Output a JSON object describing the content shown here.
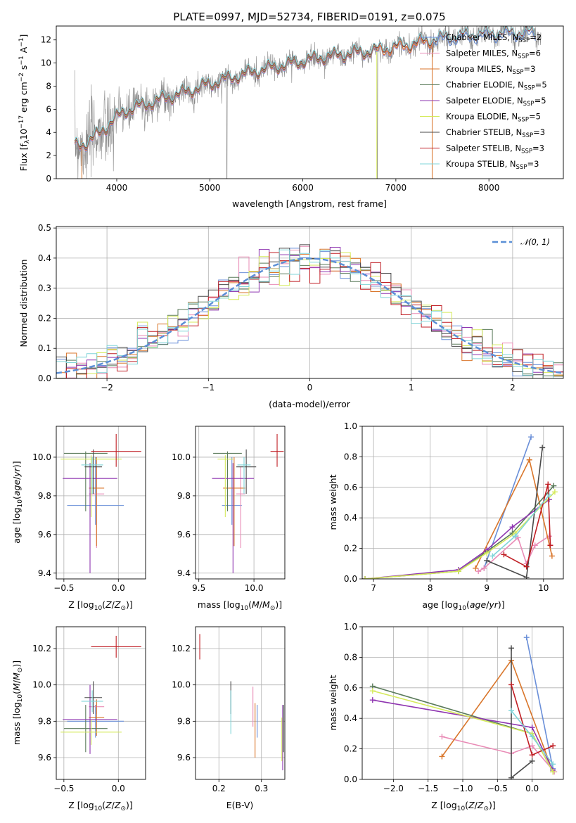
{
  "colors": {
    "Chabrier MILES": "#6a8fd8",
    "Salpeter MILES": "#e98bb6",
    "Kroupa MILES": "#d9762b",
    "Chabrier ELODIE": "#5a7a5a",
    "Salpeter ELODIE": "#8e34b0",
    "Kroupa ELODIE": "#d5ea5b",
    "Chabrier STELIB": "#4a4a4a",
    "Salpeter STELIB": "#c01e24",
    "Kroupa STELIB": "#7fd4d8",
    "data": "#888888",
    "grid": "#b0b0b0"
  },
  "chart_data": [
    {
      "id": "spectrum",
      "type": "line",
      "title": "PLATE=0997, MJD=52734, FIBERID=0191, z=0.075",
      "xlabel": "wavelength [Angstrom, rest frame]",
      "ylabel": "Flux [fλ10⁻¹⁷ erg cm⁻² s⁻¹ A⁻¹]",
      "xlim": [
        3350,
        8800
      ],
      "ylim": [
        0,
        13.2
      ],
      "xticks": [
        4000,
        5000,
        6000,
        7000,
        8000
      ],
      "yticks": [
        0,
        2,
        4,
        6,
        8,
        10,
        12
      ],
      "grid": false,
      "legend_position": "right",
      "continuum": {
        "x": [
          3550,
          3650,
          3800,
          3950,
          4100,
          4300,
          4500,
          4700,
          5000,
          5300,
          5600,
          5900,
          6200,
          6500,
          6800,
          7100,
          7400,
          7700,
          8000,
          8300,
          8550
        ],
        "y": [
          2.8,
          3.0,
          3.8,
          5.0,
          5.9,
          6.4,
          6.9,
          7.4,
          8.2,
          8.9,
          9.5,
          10.0,
          10.5,
          10.8,
          11.1,
          11.5,
          12.0,
          12.3,
          12.5,
          12.6,
          12.5
        ]
      },
      "legend": [
        "Chabrier MILES, N_SSP=2",
        "Salpeter MILES, N_SSP=6",
        "Kroupa MILES, N_SSP=3",
        "Chabrier ELODIE, N_SSP=5",
        "Salpeter ELODIE, N_SSP=5",
        "Kroupa ELODIE, N_SSP=5",
        "Chabrier STELIB, N_SSP=3",
        "Salpeter STELIB, N_SSP=3",
        "Kroupa STELIB, N_SSP=3"
      ],
      "legend_text": [
        {
          "name": "Chabrier MILES, N",
          "sub": "SSP",
          "tail": "=2"
        },
        {
          "name": "Salpeter MILES, N",
          "sub": "SSP",
          "tail": "=6"
        },
        {
          "name": "Kroupa MILES, N",
          "sub": "SSP",
          "tail": "=3"
        },
        {
          "name": "Chabrier ELODIE, N",
          "sub": "SSP",
          "tail": "=5"
        },
        {
          "name": "Salpeter ELODIE, N",
          "sub": "SSP",
          "tail": "=5"
        },
        {
          "name": "Kroupa ELODIE, N",
          "sub": "SSP",
          "tail": "=5"
        },
        {
          "name": "Chabrier STELIB, N",
          "sub": "SSP",
          "tail": "=3"
        },
        {
          "name": "Salpeter STELIB, N",
          "sub": "SSP",
          "tail": "=3"
        },
        {
          "name": "Kroupa STELIB, N",
          "sub": "SSP",
          "tail": "=3"
        }
      ]
    },
    {
      "id": "residuals",
      "type": "line",
      "xlabel": "(data-model)/error",
      "ylabel": "Normed distribution",
      "xlim": [
        -2.5,
        2.5
      ],
      "ylim": [
        0,
        0.505
      ],
      "xticks": [
        -2,
        -1,
        0,
        1,
        2
      ],
      "xticklabels": [
        "−2",
        "−1",
        "0",
        "1",
        "2"
      ],
      "yticks": [
        0,
        0.1,
        0.2,
        0.3,
        0.4,
        0.5
      ],
      "yticklabels": [
        "0.0",
        "0.1",
        "0.2",
        "0.3",
        "0.4",
        "0.5"
      ],
      "grid": true,
      "legend": [
        "𝒩(0, 1)"
      ],
      "legend_position": "top-right",
      "gaussian": {
        "mean": 0,
        "sigma": 1
      }
    },
    {
      "id": "age_vs_Z",
      "type": "scatter",
      "xlabel": "Z [log10(Z/Z⊙)]",
      "ylabel": "age [log10(age/yr)]",
      "xlim": [
        -0.57,
        0.25
      ],
      "ylim": [
        9.37,
        10.16
      ],
      "xticks": [
        -0.5,
        0.0
      ],
      "xticklabels": [
        "−0.5",
        "0.0"
      ],
      "yticks": [
        9.4,
        9.6,
        9.8,
        10.0
      ],
      "yticklabels": [
        "9.4",
        "9.6",
        "9.8",
        "10.0"
      ],
      "grid": true,
      "points": [
        {
          "series": "Chabrier MILES",
          "x": -0.21,
          "y": 9.75,
          "xerr": 0.26,
          "yerr": [
            0.1,
            0.25
          ]
        },
        {
          "series": "Salpeter MILES",
          "x": -0.2,
          "y": 9.81,
          "xerr": 0.07,
          "yerr": [
            0.28,
            0.14
          ]
        },
        {
          "series": "Kroupa MILES",
          "x": -0.2,
          "y": 9.84,
          "xerr": 0.07,
          "yerr": [
            0.3,
            0.16
          ]
        },
        {
          "series": "Chabrier ELODIE",
          "x": -0.3,
          "y": 10.02,
          "xerr": 0.2,
          "yerr": [
            0.3,
            0.01
          ]
        },
        {
          "series": "Salpeter ELODIE",
          "x": -0.26,
          "y": 9.89,
          "xerr": 0.25,
          "yerr": [
            0.49,
            0.08
          ]
        },
        {
          "series": "Kroupa ELODIE",
          "x": -0.25,
          "y": 9.99,
          "xerr": 0.28,
          "yerr": [
            0.3,
            0.02
          ]
        },
        {
          "series": "Chabrier STELIB",
          "x": -0.23,
          "y": 9.95,
          "xerr": 0.08,
          "yerr": [
            0.14,
            0.09
          ]
        },
        {
          "series": "Salpeter STELIB",
          "x": -0.02,
          "y": 10.03,
          "xerr": 0.23,
          "yerr": [
            0.08,
            0.09
          ]
        },
        {
          "series": "Kroupa STELIB",
          "x": -0.24,
          "y": 9.96,
          "xerr": 0.1,
          "yerr": [
            0.15,
            0.04
          ]
        }
      ]
    },
    {
      "id": "age_vs_mass",
      "type": "scatter",
      "xlabel": "mass [log10(M/M⊙)]",
      "xlim": [
        9.47,
        10.28
      ],
      "ylim": [
        9.37,
        10.16
      ],
      "xticks": [
        9.5,
        10.0
      ],
      "xticklabels": [
        "9.5",
        "10.0"
      ],
      "yticks": [
        9.4,
        9.6,
        9.8,
        10.0
      ],
      "yticklabels": [
        "9.4",
        "9.6",
        "9.8",
        "10.0"
      ],
      "grid": true,
      "points": [
        {
          "series": "Chabrier MILES",
          "x": 9.8,
          "y": 9.75,
          "xerr": 0.09,
          "yerr": [
            0.1,
            0.25
          ]
        },
        {
          "series": "Salpeter MILES",
          "x": 9.88,
          "y": 9.81,
          "xerr": 0.04,
          "yerr": [
            0.28,
            0.14
          ]
        },
        {
          "series": "Kroupa MILES",
          "x": 9.82,
          "y": 9.84,
          "xerr": 0.1,
          "yerr": [
            0.3,
            0.16
          ]
        },
        {
          "series": "Chabrier ELODIE",
          "x": 9.76,
          "y": 10.02,
          "xerr": 0.13,
          "yerr": [
            0.3,
            0.01
          ]
        },
        {
          "series": "Salpeter ELODIE",
          "x": 9.81,
          "y": 9.89,
          "xerr": 0.19,
          "yerr": [
            0.49,
            0.08
          ]
        },
        {
          "series": "Kroupa ELODIE",
          "x": 9.74,
          "y": 9.99,
          "xerr": 0.07,
          "yerr": [
            0.3,
            0.02
          ]
        },
        {
          "series": "Chabrier STELIB",
          "x": 9.93,
          "y": 9.95,
          "xerr": 0.09,
          "yerr": [
            0.14,
            0.09
          ]
        },
        {
          "series": "Salpeter STELIB",
          "x": 10.21,
          "y": 10.03,
          "xerr": 0.06,
          "yerr": [
            0.08,
            0.09
          ]
        },
        {
          "series": "Kroupa STELIB",
          "x": 9.91,
          "y": 9.96,
          "xerr": 0.06,
          "yerr": [
            0.15,
            0.04
          ]
        }
      ]
    },
    {
      "id": "weight_vs_age",
      "type": "line",
      "xlabel": "age [log10(age/yr)]",
      "ylabel": "mass weight",
      "xlim": [
        6.8,
        10.35
      ],
      "ylim": [
        0,
        1.0
      ],
      "xticks": [
        7,
        8,
        9,
        10
      ],
      "yticks": [
        0,
        0.2,
        0.4,
        0.6,
        0.8,
        1.0
      ],
      "yticklabels": [
        "0.0",
        "0.2",
        "0.4",
        "0.6",
        "0.8",
        "1.0"
      ],
      "grid": true,
      "series": [
        {
          "name": "Chabrier MILES",
          "x": [
            8.95,
            9.78
          ],
          "y": [
            0.07,
            0.93
          ]
        },
        {
          "name": "Salpeter MILES",
          "x": [
            8.85,
            8.95,
            9.55,
            9.7,
            9.85,
            10.1
          ],
          "y": [
            0.05,
            0.07,
            0.27,
            0.1,
            0.22,
            0.28
          ]
        },
        {
          "name": "Kroupa MILES",
          "x": [
            8.8,
            9.75,
            10.15
          ],
          "y": [
            0.07,
            0.78,
            0.15
          ]
        },
        {
          "name": "Chabrier ELODIE",
          "x": [
            6.85,
            8.5,
            9.0,
            9.45,
            10.18
          ],
          "y": [
            0.0,
            0.05,
            0.18,
            0.3,
            0.61
          ]
        },
        {
          "name": "Salpeter ELODIE",
          "x": [
            6.85,
            8.5,
            9.0,
            9.45,
            10.1
          ],
          "y": [
            0.0,
            0.06,
            0.19,
            0.34,
            0.52
          ]
        },
        {
          "name": "Kroupa ELODIE",
          "x": [
            6.85,
            8.5,
            9.0,
            9.5,
            10.2
          ],
          "y": [
            0.0,
            0.05,
            0.17,
            0.3,
            0.57
          ]
        },
        {
          "name": "Chabrier STELIB",
          "x": [
            9.0,
            9.7,
            9.98
          ],
          "y": [
            0.12,
            0.01,
            0.86
          ]
        },
        {
          "name": "Salpeter STELIB",
          "x": [
            9.3,
            9.7,
            10.08,
            10.12
          ],
          "y": [
            0.16,
            0.08,
            0.62,
            0.22
          ]
        },
        {
          "name": "Kroupa STELIB",
          "x": [
            9.1,
            9.5,
            10.1
          ],
          "y": [
            0.15,
            0.28,
            0.55
          ]
        }
      ]
    },
    {
      "id": "mass_vs_Z",
      "type": "scatter",
      "xlabel": "Z [log10(Z/Z⊙)]",
      "ylabel": "mass [log10(M/M⊙)]",
      "xlim": [
        -0.57,
        0.25
      ],
      "ylim": [
        9.48,
        10.32
      ],
      "xticks": [
        -0.5,
        0.0
      ],
      "xticklabels": [
        "−0.5",
        "0.0"
      ],
      "yticks": [
        9.6,
        9.8,
        10.0,
        10.2
      ],
      "yticklabels": [
        "9.6",
        "9.8",
        "10.0",
        "10.2"
      ],
      "grid": true,
      "points": [
        {
          "series": "Chabrier MILES",
          "x": -0.21,
          "y": 9.8,
          "xerr": 0.26,
          "yerr": 0.09
        },
        {
          "series": "Salpeter MILES",
          "x": -0.2,
          "y": 9.88,
          "xerr": 0.07,
          "yerr": 0.04
        },
        {
          "series": "Kroupa MILES",
          "x": -0.2,
          "y": 9.82,
          "xerr": 0.07,
          "yerr": 0.1
        },
        {
          "series": "Chabrier ELODIE",
          "x": -0.3,
          "y": 9.76,
          "xerr": 0.2,
          "yerr": 0.13
        },
        {
          "series": "Salpeter ELODIE",
          "x": -0.26,
          "y": 9.81,
          "xerr": 0.25,
          "yerr": 0.19
        },
        {
          "series": "Kroupa ELODIE",
          "x": -0.25,
          "y": 9.74,
          "xerr": 0.28,
          "yerr": 0.07
        },
        {
          "series": "Chabrier STELIB",
          "x": -0.23,
          "y": 9.93,
          "xerr": 0.08,
          "yerr": 0.09
        },
        {
          "series": "Salpeter STELIB",
          "x": -0.02,
          "y": 10.21,
          "xerr": 0.23,
          "yerr": 0.06
        },
        {
          "series": "Kroupa STELIB",
          "x": -0.24,
          "y": 9.91,
          "xerr": 0.1,
          "yerr": 0.06
        }
      ]
    },
    {
      "id": "mass_vs_ebv",
      "type": "scatter",
      "xlabel": "E(B-V)",
      "xlim": [
        0.145,
        0.355
      ],
      "ylim": [
        9.48,
        10.32
      ],
      "xticks": [
        0.2,
        0.3
      ],
      "xticklabels": [
        "0.2",
        "0.3"
      ],
      "yticks": [
        9.6,
        9.8,
        10.0,
        10.2
      ],
      "yticklabels": [
        "9.6",
        "9.8",
        "10.0",
        "10.2"
      ],
      "grid": true,
      "points": [
        {
          "series": "Chabrier MILES",
          "x": 0.29,
          "y": 9.8,
          "yerr": 0.09
        },
        {
          "series": "Salpeter MILES",
          "x": 0.28,
          "y": 9.88,
          "yerr": 0.11
        },
        {
          "series": "Kroupa MILES",
          "x": 0.285,
          "y": 9.75,
          "yerr": 0.15
        },
        {
          "series": "Chabrier ELODIE",
          "x": 0.352,
          "y": 9.76,
          "yerr": 0.13
        },
        {
          "series": "Salpeter ELODIE",
          "x": 0.35,
          "y": 9.71,
          "yerr": 0.18
        },
        {
          "series": "Kroupa ELODIE",
          "x": 0.348,
          "y": 9.7,
          "yerr": 0.12
        },
        {
          "series": "Chabrier STELIB",
          "x": 0.228,
          "y": 9.93,
          "yerr": 0.09
        },
        {
          "series": "Salpeter STELIB",
          "x": 0.155,
          "y": 10.21,
          "yerr": 0.07
        },
        {
          "series": "Kroupa STELIB",
          "x": 0.228,
          "y": 9.85,
          "yerr": 0.12
        }
      ]
    },
    {
      "id": "weight_vs_Z",
      "type": "line",
      "xlabel": "Z [log10(Z/Z⊙)]",
      "ylabel": "mass weight",
      "xlim": [
        -2.45,
        0.45
      ],
      "ylim": [
        0,
        1.0
      ],
      "xticks": [
        -2.0,
        -1.5,
        -1.0,
        -0.5,
        0.0
      ],
      "xticklabels": [
        "−2.0",
        "−1.5",
        "−1.0",
        "−0.5",
        "0.0"
      ],
      "yticks": [
        0,
        0.2,
        0.4,
        0.6,
        0.8,
        1.0
      ],
      "yticklabels": [
        "0.0",
        "0.2",
        "0.4",
        "0.6",
        "0.8",
        "1.0"
      ],
      "grid": true,
      "series": [
        {
          "name": "Chabrier MILES",
          "x": [
            -0.08,
            0.3
          ],
          "y": [
            0.93,
            0.07
          ]
        },
        {
          "name": "Salpeter MILES",
          "x": [
            -1.3,
            -0.3,
            0.0,
            0.32
          ],
          "y": [
            0.28,
            0.17,
            0.22,
            0.05
          ]
        },
        {
          "name": "Kroupa MILES",
          "x": [
            -1.3,
            -0.3,
            0.3
          ],
          "y": [
            0.15,
            0.78,
            0.05
          ]
        },
        {
          "name": "Chabrier ELODIE",
          "x": [
            -2.3,
            0.0,
            0.3
          ],
          "y": [
            0.61,
            0.3,
            0.05
          ]
        },
        {
          "name": "Salpeter ELODIE",
          "x": [
            -2.3,
            0.0,
            0.3
          ],
          "y": [
            0.52,
            0.34,
            0.06
          ]
        },
        {
          "name": "Kroupa ELODIE",
          "x": [
            -2.3,
            0.0,
            0.3
          ],
          "y": [
            0.58,
            0.3,
            0.05
          ]
        },
        {
          "name": "Chabrier STELIB",
          "x": [
            -0.3,
            -0.3,
            0.0
          ],
          "y": [
            0.86,
            0.01,
            0.12
          ]
        },
        {
          "name": "Salpeter STELIB",
          "x": [
            -0.3,
            0.0,
            0.3
          ],
          "y": [
            0.62,
            0.16,
            0.22
          ]
        },
        {
          "name": "Kroupa STELIB",
          "x": [
            -0.3,
            0.0,
            0.3
          ],
          "y": [
            0.45,
            0.28,
            0.1
          ]
        }
      ]
    }
  ]
}
